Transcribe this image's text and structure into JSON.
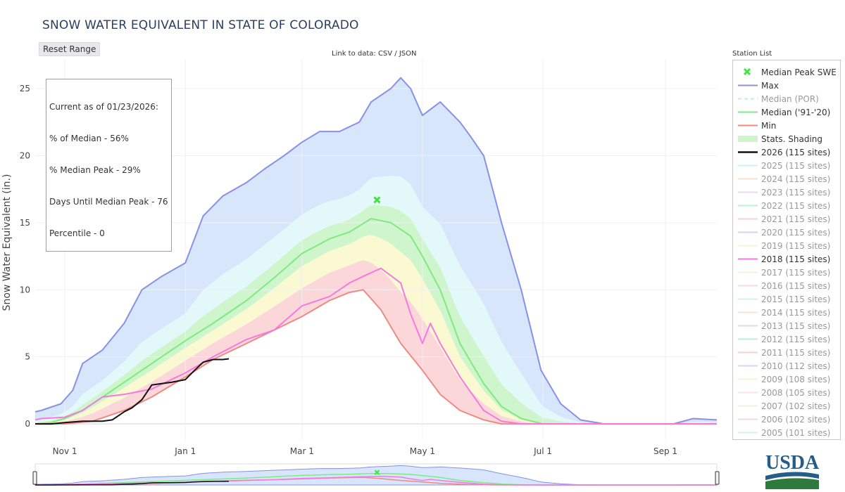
{
  "title": "SNOW WATER EQUIVALENT IN STATE OF COLORADO",
  "reset_label": "Reset Range",
  "data_link": "Link to data: CSV / JSON",
  "info": {
    "line1": "Current as of 01/23/2026:",
    "line2": "% of Median - 56%",
    "line3": "% Median Peak - 29%",
    "line4": "Days Until Median Peak - 76",
    "line5": "Percentile - 0"
  },
  "station_list_label": "Station List",
  "logo_text": "USDA",
  "colors": {
    "max": "#8891e6",
    "median": "#7eea80",
    "min": "#ee8a84",
    "y2026": "#111111",
    "y2018": "#f37ae0",
    "shade_outer": "#d7e6fb",
    "shade_cyan": "#e2f8f9",
    "shade_green": "#cff5cc",
    "shade_yellow": "#fbf9d2",
    "shade_red": "#fbd7da",
    "peak_marker": "#3ee63e"
  },
  "legend": [
    {
      "label": "Median Peak SWE",
      "kind": "marker",
      "color": "#3ee63e",
      "faded": false
    },
    {
      "label": "Max",
      "kind": "line",
      "color": "#8891e6",
      "faded": false
    },
    {
      "label": "Median (POR)",
      "kind": "dash",
      "color": "#c8ecc8",
      "faded": true
    },
    {
      "label": "Median ('91-'20)",
      "kind": "line",
      "color": "#7eea80",
      "faded": false
    },
    {
      "label": "Min",
      "kind": "line",
      "color": "#ee8a84",
      "faded": false
    },
    {
      "label": "Stats. Shading",
      "kind": "fill",
      "color": "#cff5cc",
      "faded": false
    },
    {
      "label": "2026 (115 sites)",
      "kind": "bold",
      "color": "#111111",
      "faded": false
    },
    {
      "label": "2025 (115 sites)",
      "kind": "line",
      "color": "#9eeaea",
      "faded": true
    },
    {
      "label": "2024 (115 sites)",
      "kind": "line",
      "color": "#f5c8a0",
      "faded": true
    },
    {
      "label": "2023 (115 sites)",
      "kind": "line",
      "color": "#dcb8f0",
      "faded": true
    },
    {
      "label": "2022 (115 sites)",
      "kind": "line",
      "color": "#8de0b8",
      "faded": true
    },
    {
      "label": "2021 (115 sites)",
      "kind": "line",
      "color": "#f2b0a8",
      "faded": true
    },
    {
      "label": "2020 (115 sites)",
      "kind": "line",
      "color": "#aeb4f0",
      "faded": true
    },
    {
      "label": "2019 (115 sites)",
      "kind": "line",
      "color": "#f5eab0",
      "faded": true
    },
    {
      "label": "2018 (115 sites)",
      "kind": "line",
      "color": "#f37ae0",
      "faded": false
    },
    {
      "label": "2017 (115 sites)",
      "kind": "line",
      "color": "#d8efc4",
      "faded": true
    },
    {
      "label": "2016 (115 sites)",
      "kind": "line",
      "color": "#f5b8cc",
      "faded": true
    },
    {
      "label": "2015 (115 sites)",
      "kind": "line",
      "color": "#a8eaea",
      "faded": true
    },
    {
      "label": "2014 (115 sites)",
      "kind": "line",
      "color": "#f5cfa8",
      "faded": true
    },
    {
      "label": "2013 (115 sites)",
      "kind": "line",
      "color": "#d4b8ec",
      "faded": true
    },
    {
      "label": "2012 (115 sites)",
      "kind": "line",
      "color": "#8edec0",
      "faded": true
    },
    {
      "label": "2011 (115 sites)",
      "kind": "line",
      "color": "#f0aaa0",
      "faded": true
    },
    {
      "label": "2010 (112 sites)",
      "kind": "line",
      "color": "#b0b8f0",
      "faded": true
    },
    {
      "label": "2009 (108 sites)",
      "kind": "line",
      "color": "#f3e8a8",
      "faded": true
    },
    {
      "label": "2008 (105 sites)",
      "kind": "line",
      "color": "#f8c8f0",
      "faded": true
    },
    {
      "label": "2007 (102 sites)",
      "kind": "line",
      "color": "#d8efc0",
      "faded": true
    },
    {
      "label": "2006 (102 sites)",
      "kind": "line",
      "color": "#f5b8cc",
      "faded": true
    },
    {
      "label": "2005 (101 sites)",
      "kind": "line",
      "color": "#a8eaea",
      "faded": true
    }
  ],
  "chart_data": {
    "type": "area",
    "title": "SNOW WATER EQUIVALENT IN STATE OF COLORADO",
    "xlabel": "",
    "ylabel": "Snow Water Equivalent (in.)",
    "x_unit": "date (day of water year, Oct 1 start)",
    "xlim": [
      "2025-10-17",
      "2026-09-27"
    ],
    "ylim": [
      -1.2,
      27.2
    ],
    "x_ticks": [
      "Nov 1",
      "Jan 1",
      "Mar 1",
      "May 1",
      "Jul 1",
      "Sep 1"
    ],
    "y_ticks": [
      0,
      5,
      10,
      15,
      20,
      25
    ],
    "grid": true,
    "legend_position": "right",
    "median_peak": {
      "date": "2026-04-08",
      "value": 16.7
    },
    "series": [
      {
        "name": "Max",
        "x": [
          "2025-10-17",
          "2025-10-20",
          "2025-10-30",
          "2025-11-05",
          "2025-11-10",
          "2025-11-20",
          "2025-12-01",
          "2025-12-10",
          "2025-12-20",
          "2026-01-01",
          "2026-01-10",
          "2026-01-20",
          "2026-02-01",
          "2026-02-10",
          "2026-02-20",
          "2026-03-01",
          "2026-03-10",
          "2026-03-20",
          "2026-03-30",
          "2026-04-05",
          "2026-04-15",
          "2026-04-20",
          "2026-04-25",
          "2026-05-01",
          "2026-05-10",
          "2026-05-20",
          "2026-05-25",
          "2026-06-01",
          "2026-06-10",
          "2026-06-20",
          "2026-06-30",
          "2026-07-10",
          "2026-07-20",
          "2026-08-01",
          "2026-08-20",
          "2026-09-05",
          "2026-09-15",
          "2026-09-27"
        ],
        "values": [
          0.9,
          1.0,
          1.5,
          2.5,
          4.5,
          5.5,
          7.5,
          10,
          11,
          12,
          15.5,
          17,
          18,
          19,
          20,
          21,
          21.8,
          21.8,
          22.5,
          24,
          25,
          25.8,
          25,
          23,
          24,
          22.5,
          21.5,
          20,
          15,
          10,
          4,
          1.5,
          0.3,
          0,
          0,
          0,
          0.4,
          0.3
        ]
      },
      {
        "name": "Median ('91-'20)",
        "x": [
          "2025-10-17",
          "2025-10-25",
          "2025-11-01",
          "2025-11-10",
          "2025-11-20",
          "2025-12-01",
          "2025-12-15",
          "2026-01-01",
          "2026-01-15",
          "2026-02-01",
          "2026-02-15",
          "2026-03-01",
          "2026-03-15",
          "2026-03-25",
          "2026-04-05",
          "2026-04-15",
          "2026-04-25",
          "2026-05-01",
          "2026-05-10",
          "2026-05-20",
          "2026-06-01",
          "2026-06-10",
          "2026-06-20",
          "2026-07-01",
          "2026-07-10",
          "2026-07-20",
          "2026-09-27"
        ],
        "values": [
          0,
          0.1,
          0.4,
          1,
          2,
          3.1,
          4.5,
          6.2,
          7.5,
          9.2,
          10.9,
          12.7,
          13.8,
          14.3,
          15.3,
          15,
          14,
          12.5,
          10,
          6,
          3,
          1.3,
          0.4,
          0,
          0,
          0,
          0
        ]
      },
      {
        "name": "Min",
        "x": [
          "2025-10-17",
          "2025-11-01",
          "2025-11-15",
          "2025-12-01",
          "2025-12-15",
          "2026-01-01",
          "2026-01-15",
          "2026-02-01",
          "2026-02-15",
          "2026-03-01",
          "2026-03-15",
          "2026-03-25",
          "2026-04-01",
          "2026-04-10",
          "2026-04-20",
          "2026-05-01",
          "2026-05-10",
          "2026-05-20",
          "2026-06-01",
          "2026-06-10",
          "2026-06-20",
          "2026-07-01",
          "2026-09-27"
        ],
        "values": [
          0,
          0,
          0.2,
          1,
          2,
          3.5,
          4.8,
          6,
          7,
          8,
          9.2,
          9.8,
          10,
          8.5,
          6,
          4,
          2.2,
          1,
          0.3,
          0,
          0,
          0,
          0
        ]
      },
      {
        "name": "2018 (115 sites)",
        "x": [
          "2025-10-17",
          "2025-10-20",
          "2025-11-01",
          "2025-11-10",
          "2025-11-20",
          "2025-12-01",
          "2025-12-15",
          "2026-01-01",
          "2026-01-15",
          "2026-02-01",
          "2026-02-15",
          "2026-03-01",
          "2026-03-15",
          "2026-03-25",
          "2026-04-01",
          "2026-04-10",
          "2026-04-20",
          "2026-04-25",
          "2026-05-01",
          "2026-05-05",
          "2026-05-10",
          "2026-05-20",
          "2026-06-01",
          "2026-06-10",
          "2026-06-20",
          "2026-07-01",
          "2026-09-27"
        ],
        "values": [
          0.3,
          0.4,
          0.5,
          1,
          2,
          2.2,
          2.6,
          3.8,
          5,
          6.3,
          7,
          8.8,
          9.5,
          10.5,
          11,
          11.6,
          10.5,
          8.2,
          6,
          7.5,
          6,
          3.5,
          1,
          0.2,
          0,
          0,
          0
        ]
      },
      {
        "name": "2026 (115 sites)",
        "x": [
          "2025-10-17",
          "2025-10-25",
          "2025-11-01",
          "2025-11-10",
          "2025-11-15",
          "2025-11-20",
          "2025-11-25",
          "2025-12-01",
          "2025-12-05",
          "2025-12-10",
          "2025-12-15",
          "2025-12-20",
          "2025-12-25",
          "2026-01-01",
          "2026-01-05",
          "2026-01-10",
          "2026-01-15",
          "2026-01-20",
          "2026-01-23"
        ],
        "values": [
          0,
          0,
          0.1,
          0.2,
          0.2,
          0.2,
          0.3,
          0.9,
          1.2,
          1.8,
          2.9,
          3,
          3.1,
          3.3,
          3.9,
          4.6,
          4.8,
          4.8,
          4.85
        ]
      }
    ]
  }
}
